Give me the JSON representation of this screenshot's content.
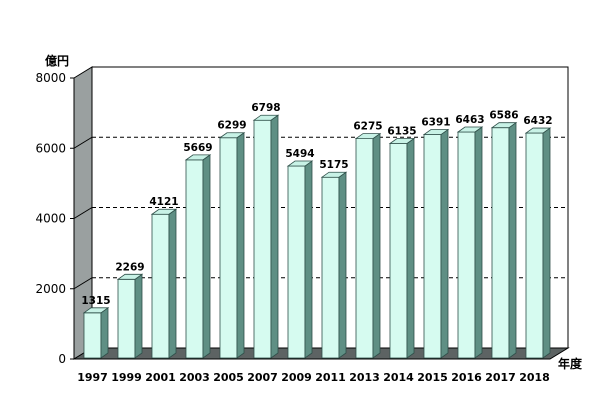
{
  "chart_data": {
    "type": "bar",
    "categories": [
      "1997",
      "1999",
      "2001",
      "2003",
      "2005",
      "2007",
      "2009",
      "2011",
      "2013",
      "2014",
      "2015",
      "2016",
      "2017",
      "2018"
    ],
    "values": [
      1315,
      2269,
      4121,
      5669,
      6299,
      6798,
      5494,
      5175,
      6275,
      6135,
      6391,
      6463,
      6586,
      6432
    ],
    "data_labels": [
      "1315",
      "2269",
      "4121",
      "5669",
      "6299",
      "6798",
      "5494",
      "5175",
      "6275",
      "6135",
      "6391",
      "6463",
      "6586",
      "6432"
    ],
    "y_unit_label": "億円",
    "x_unit_label": "年度",
    "y_ticks": [
      "0",
      "2000",
      "4000",
      "6000",
      "8000"
    ],
    "ylim": [
      0,
      8000
    ],
    "grid": "horizontal dashed",
    "legend": "none",
    "colors": {
      "bar_front": "#d6fbf0",
      "bar_top": "#c8f2e6",
      "bar_side": "#5f8f84",
      "bar_stroke": "#2f4f49",
      "back_wall": "#ffffff",
      "left_wall": "#9aa0a0",
      "floor": "#5d6363",
      "gridline": "#000000"
    }
  }
}
